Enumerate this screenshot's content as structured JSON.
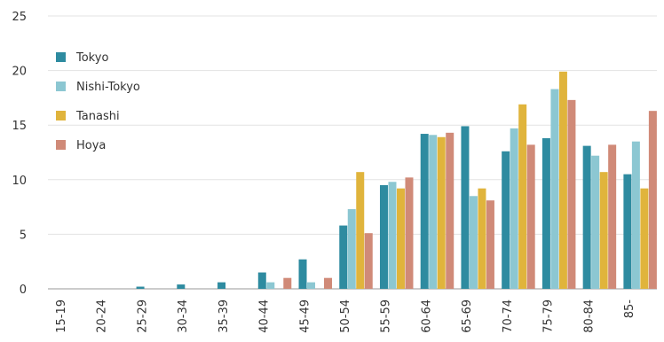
{
  "chart_data": {
    "type": "bar",
    "title": "",
    "xlabel": "",
    "ylabel": "",
    "ylim": [
      0,
      25
    ],
    "yticks": [
      0,
      5,
      10,
      15,
      20,
      25
    ],
    "grid": "horizontal",
    "legend_position": "top-left",
    "categories": [
      "15-19",
      "20-24",
      "25-29",
      "30-34",
      "35-39",
      "40-44",
      "45-49",
      "50-54",
      "55-59",
      "60-64",
      "65-69",
      "70-74",
      "75-79",
      "80-84",
      "85-"
    ],
    "series": [
      {
        "name": "Tokyo",
        "color": "#2e8ba0",
        "values": [
          0,
          0,
          0.2,
          0.4,
          0.6,
          1.5,
          2.7,
          5.8,
          9.5,
          14.2,
          14.9,
          12.6,
          13.8,
          13.1,
          10.5
        ]
      },
      {
        "name": "Nishi-Tokyo",
        "color": "#8cc7d2",
        "values": [
          0,
          0,
          0,
          0,
          0,
          0.6,
          0.6,
          7.3,
          9.8,
          14.1,
          8.5,
          14.7,
          18.3,
          12.2,
          13.5
        ]
      },
      {
        "name": "Tanashi",
        "color": "#e0b43c",
        "values": [
          0,
          0,
          0,
          0,
          0,
          0,
          0,
          10.7,
          9.2,
          13.9,
          9.2,
          16.9,
          19.9,
          10.7,
          9.2
        ]
      },
      {
        "name": "Hoya",
        "color": "#d08a78",
        "values": [
          0,
          0,
          0,
          0,
          0,
          1.0,
          1.0,
          5.1,
          10.2,
          14.3,
          8.1,
          13.2,
          17.3,
          13.2,
          16.3
        ]
      }
    ]
  }
}
